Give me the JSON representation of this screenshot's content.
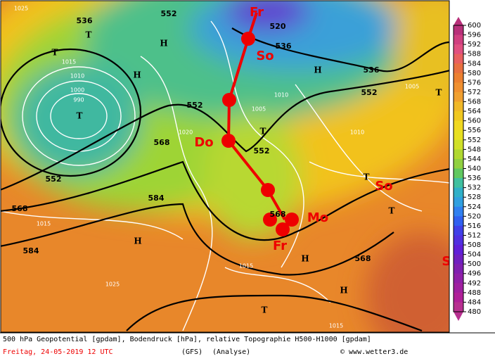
{
  "map": {
    "contour_labels": [
      "536",
      "552",
      "520",
      "536",
      "536",
      "552",
      "552",
      "568",
      "552",
      "552",
      "568",
      "584",
      "568",
      "584",
      "568"
    ],
    "pressure_labels": [
      "1025",
      "1015",
      "1010",
      "1000",
      "990",
      "1005",
      "1020",
      "1015",
      "1015",
      "1025",
      "1015",
      "1010",
      "1005",
      "1010"
    ],
    "centers": [
      "T",
      "T",
      "H",
      "H",
      "T",
      "T",
      "T",
      "H",
      "H",
      "H",
      "T",
      "T",
      "H",
      "T"
    ],
    "track_labels": [
      "Fr",
      "So",
      "Do",
      "Mo",
      "Fr",
      "So",
      "So"
    ]
  },
  "colorbar": {
    "labels": [
      600,
      596,
      592,
      588,
      584,
      580,
      576,
      572,
      568,
      564,
      560,
      556,
      552,
      548,
      544,
      540,
      536,
      532,
      528,
      524,
      520,
      516,
      512,
      508,
      504,
      500,
      496,
      492,
      488,
      484,
      480
    ]
  },
  "footer": {
    "description": "500 hPa Geopotential [gpdam], Bodendruck [hPa], relative Topographie H500-H1000 [gpdam]",
    "date": "Freitag, 24-05-2019  12 UTC",
    "model": "(GFS)",
    "analysis": "(Analyse)",
    "credit": "© www.wetter3.de"
  }
}
